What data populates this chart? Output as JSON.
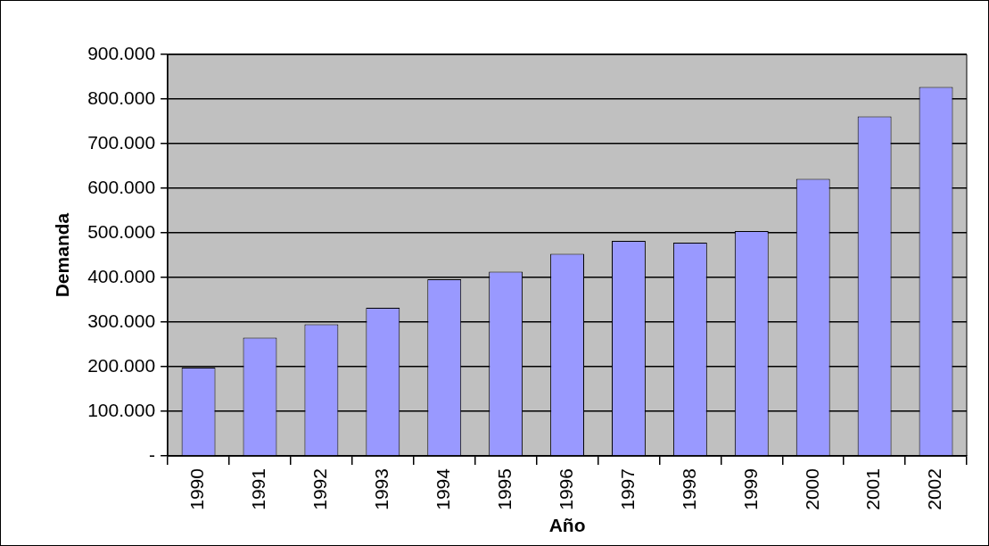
{
  "chart_data": {
    "type": "bar",
    "xlabel": "Año",
    "ylabel": "Demanda",
    "categories": [
      "1990",
      "1991",
      "1992",
      "1993",
      "1994",
      "1995",
      "1996",
      "1997",
      "1998",
      "1999",
      "2000",
      "2001",
      "2002"
    ],
    "values": [
      198000,
      265000,
      295000,
      332000,
      396000,
      413000,
      453000,
      482000,
      478000,
      504000,
      621000,
      761000,
      827000
    ],
    "color": "#9999ff",
    "ylim": [
      0,
      900000
    ],
    "yticks": [
      {
        "value": 0,
        "label": "-"
      },
      {
        "value": 100000,
        "label": "100.000"
      },
      {
        "value": 200000,
        "label": "200.000"
      },
      {
        "value": 300000,
        "label": "300.000"
      },
      {
        "value": 400000,
        "label": "400.000"
      },
      {
        "value": 500000,
        "label": "500.000"
      },
      {
        "value": 600000,
        "label": "600.000"
      },
      {
        "value": 700000,
        "label": "700.000"
      },
      {
        "value": 800000,
        "label": "800.000"
      },
      {
        "value": 900000,
        "label": "900.000"
      }
    ],
    "grid": "y",
    "legend": false
  }
}
